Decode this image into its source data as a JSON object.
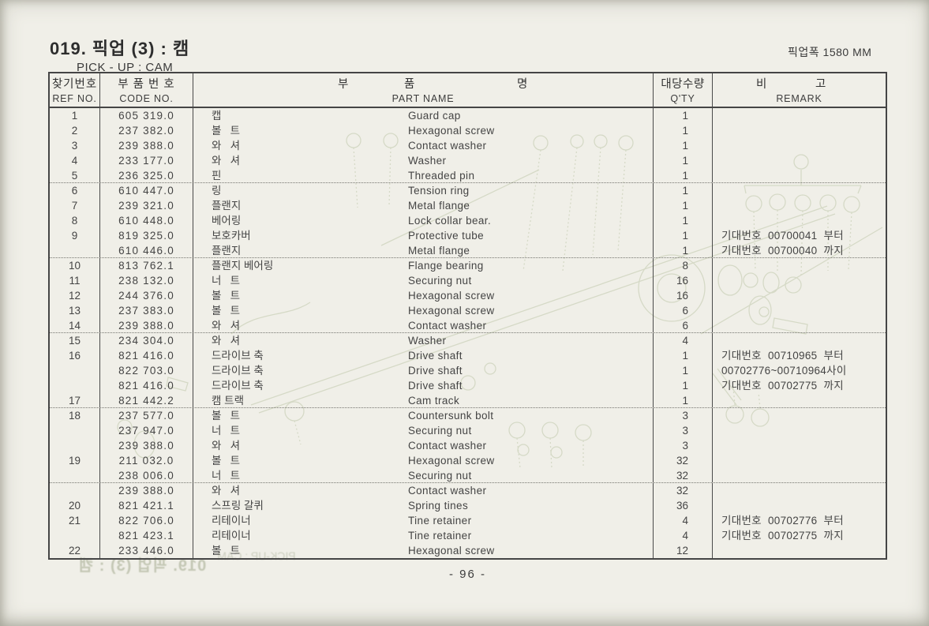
{
  "page": {
    "title": "019. 픽업 (3) : 캠",
    "subtitle": "PICK - UP : CAM",
    "pickup_width_label": "픽업폭  1580 MM",
    "page_number": "- 96 -",
    "bleed_through_title": "019. 픽업 (3) : 캠",
    "bleed_through_subtitle": "PICK-UP : CAM"
  },
  "table": {
    "headers": {
      "ref_kr": "찾기번호",
      "ref_en": "REF NO.",
      "code_kr": "부 품 번 호",
      "code_en": "CODE NO.",
      "name_kr_1": "부",
      "name_kr_2": "품",
      "name_kr_3": "명",
      "name_en": "PART NAME",
      "qty_kr": "대당수량",
      "qty_en": "Q'TY",
      "remark_kr_1": "비",
      "remark_kr_2": "고",
      "remark_en": "REMARK"
    },
    "rows": [
      {
        "ref": "1",
        "code": "605 319.0",
        "kr": "캡",
        "en": "Guard cap",
        "qty": "1",
        "remark": "",
        "sep": false
      },
      {
        "ref": "2",
        "code": "237 382.0",
        "kr": "볼   트",
        "en": "Hexagonal screw",
        "qty": "1",
        "remark": "",
        "sep": false
      },
      {
        "ref": "3",
        "code": "239 388.0",
        "kr": "와   셔",
        "en": "Contact washer",
        "qty": "1",
        "remark": "",
        "sep": false
      },
      {
        "ref": "4",
        "code": "233 177.0",
        "kr": "와   셔",
        "en": "Washer",
        "qty": "1",
        "remark": "",
        "sep": false
      },
      {
        "ref": "5",
        "code": "236 325.0",
        "kr": "핀",
        "en": "Threaded pin",
        "qty": "1",
        "remark": "",
        "sep": true
      },
      {
        "ref": "6",
        "code": "610 447.0",
        "kr": "링",
        "en": "Tension ring",
        "qty": "1",
        "remark": "",
        "sep": false
      },
      {
        "ref": "7",
        "code": "239 321.0",
        "kr": "플랜지",
        "en": "Metal flange",
        "qty": "1",
        "remark": "",
        "sep": false
      },
      {
        "ref": "8",
        "code": "610 448.0",
        "kr": "베어링",
        "en": "Lock collar bear.",
        "qty": "1",
        "remark": "",
        "sep": false
      },
      {
        "ref": "9",
        "code": "819 325.0",
        "kr": "보호카버",
        "en": "Protective tube",
        "qty": "1",
        "remark": "기대번호  00700041  부터",
        "sep": false
      },
      {
        "ref": "",
        "code": "610 446.0",
        "kr": "플랜지",
        "en": "Metal flange",
        "qty": "1",
        "remark": "기대번호  00700040  까지",
        "sep": true
      },
      {
        "ref": "10",
        "code": "813 762.1",
        "kr": "플랜지 베어링",
        "en": "Flange bearing",
        "qty": "8",
        "remark": "",
        "sep": false
      },
      {
        "ref": "11",
        "code": "238 132.0",
        "kr": "너   트",
        "en": "Securing nut",
        "qty": "16",
        "remark": "",
        "sep": false
      },
      {
        "ref": "12",
        "code": "244 376.0",
        "kr": "볼   트",
        "en": "Hexagonal screw",
        "qty": "16",
        "remark": "",
        "sep": false
      },
      {
        "ref": "13",
        "code": "237 383.0",
        "kr": "볼   트",
        "en": "Hexagonal screw",
        "qty": "6",
        "remark": "",
        "sep": false
      },
      {
        "ref": "14",
        "code": "239 388.0",
        "kr": "와   셔",
        "en": "Contact washer",
        "qty": "6",
        "remark": "",
        "sep": true
      },
      {
        "ref": "15",
        "code": "234 304.0",
        "kr": "와   셔",
        "en": "Washer",
        "qty": "4",
        "remark": "",
        "sep": false
      },
      {
        "ref": "16",
        "code": "821 416.0",
        "kr": "드라이브 축",
        "en": "Drive shaft",
        "qty": "1",
        "remark": "기대번호  00710965  부터",
        "sep": false
      },
      {
        "ref": "",
        "code": "822 703.0",
        "kr": "드라이브 축",
        "en": "Drive shaft",
        "qty": "1",
        "remark": "00702776~00710964사이",
        "sep": false
      },
      {
        "ref": "",
        "code": "821 416.0",
        "kr": "드라이브 축",
        "en": "Drive shaft",
        "qty": "1",
        "remark": "기대번호  00702775  까지",
        "sep": false
      },
      {
        "ref": "17",
        "code": "821 442.2",
        "kr": "캠 트랙",
        "en": "Cam track",
        "qty": "1",
        "remark": "",
        "sep": true
      },
      {
        "ref": "18",
        "code": "237 577.0",
        "kr": "볼   트",
        "en": "Countersunk bolt",
        "qty": "3",
        "remark": "",
        "sep": false
      },
      {
        "ref": "",
        "code": "237 947.0",
        "kr": "너   트",
        "en": "Securing nut",
        "qty": "3",
        "remark": "",
        "sep": false
      },
      {
        "ref": "",
        "code": "239 388.0",
        "kr": "와   셔",
        "en": "Contact washer",
        "qty": "3",
        "remark": "",
        "sep": false
      },
      {
        "ref": "19",
        "code": "211 032.0",
        "kr": "볼   트",
        "en": "Hexagonal screw",
        "qty": "32",
        "remark": "",
        "sep": false
      },
      {
        "ref": "",
        "code": "238 006.0",
        "kr": "너   트",
        "en": "Securing nut",
        "qty": "32",
        "remark": "",
        "sep": true
      },
      {
        "ref": "",
        "code": "239 388.0",
        "kr": "와   셔",
        "en": "Contact washer",
        "qty": "32",
        "remark": "",
        "sep": false
      },
      {
        "ref": "20",
        "code": "821 421.1",
        "kr": "스프링 갈퀴",
        "en": "Spring tines",
        "qty": "36",
        "remark": "",
        "sep": false
      },
      {
        "ref": "21",
        "code": "822 706.0",
        "kr": "리테이너",
        "en": "Tine retainer",
        "qty": "4",
        "remark": "기대번호  00702776  부터",
        "sep": false
      },
      {
        "ref": "",
        "code": "821 423.1",
        "kr": "리테이너",
        "en": "Tine retainer",
        "qty": "4",
        "remark": "기대번호  00702775  까지",
        "sep": false
      },
      {
        "ref": "22",
        "code": "233 446.0",
        "kr": "볼   트",
        "en": "Hexagonal screw",
        "qty": "12",
        "remark": "",
        "sep": false
      }
    ]
  }
}
